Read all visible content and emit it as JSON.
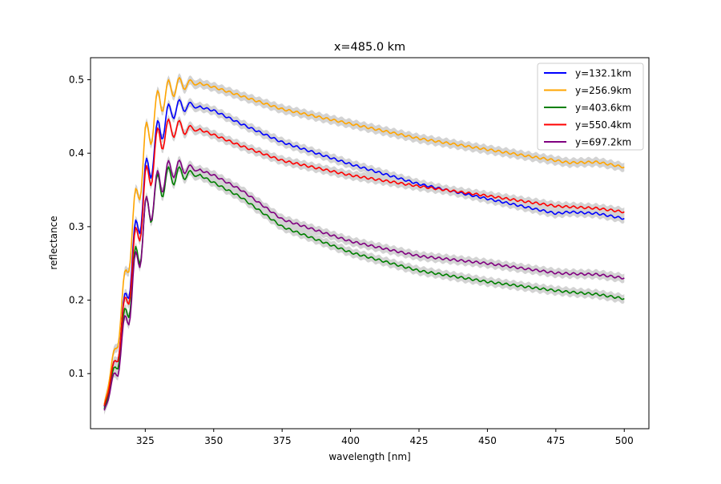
{
  "chart_data": {
    "type": "line",
    "title": "x=485.0 km",
    "xlabel": "wavelength [nm]",
    "ylabel": "reflectance",
    "xlim": [
      305,
      509
    ],
    "ylim": [
      0.025,
      0.53
    ],
    "xticks": [
      325,
      350,
      375,
      400,
      425,
      450,
      475,
      500
    ],
    "yticks": [
      0.1,
      0.2,
      0.3,
      0.4,
      0.5
    ],
    "xtick_labels": [
      "325",
      "350",
      "375",
      "400",
      "425",
      "450",
      "475",
      "500"
    ],
    "ytick_labels": [
      "0.1",
      "0.2",
      "0.3",
      "0.4",
      "0.5"
    ],
    "grid": false,
    "legend_position": "top-right",
    "uncertainty_band_color": "#d3d3d3",
    "x_points": [
      310,
      315,
      320,
      325,
      330,
      335,
      340,
      345,
      350,
      360,
      375,
      400,
      425,
      450,
      475,
      480,
      490,
      500
    ],
    "series": [
      {
        "name": "y=132.1km",
        "color": "#0000ff",
        "values": [
          0.055,
          0.13,
          0.25,
          0.36,
          0.43,
          0.46,
          0.465,
          0.463,
          0.458,
          0.44,
          0.415,
          0.385,
          0.358,
          0.338,
          0.318,
          0.32,
          0.318,
          0.311
        ]
      },
      {
        "name": "y=256.9km",
        "color": "#ffa500",
        "values": [
          0.058,
          0.15,
          0.29,
          0.41,
          0.47,
          0.49,
          0.495,
          0.495,
          0.49,
          0.478,
          0.46,
          0.44,
          0.42,
          0.405,
          0.39,
          0.387,
          0.388,
          0.381
        ]
      },
      {
        "name": "y=403.6km",
        "color": "#008000",
        "values": [
          0.052,
          0.12,
          0.22,
          0.31,
          0.355,
          0.37,
          0.372,
          0.37,
          0.36,
          0.34,
          0.3,
          0.265,
          0.24,
          0.225,
          0.213,
          0.211,
          0.208,
          0.202
        ]
      },
      {
        "name": "y=550.4km",
        "color": "#ff0000",
        "values": [
          0.056,
          0.13,
          0.24,
          0.35,
          0.42,
          0.435,
          0.433,
          0.432,
          0.425,
          0.41,
          0.39,
          0.37,
          0.355,
          0.342,
          0.328,
          0.327,
          0.325,
          0.32
        ]
      },
      {
        "name": "y=697.2km",
        "color": "#800080",
        "values": [
          0.05,
          0.11,
          0.21,
          0.31,
          0.36,
          0.38,
          0.38,
          0.377,
          0.37,
          0.35,
          0.31,
          0.28,
          0.26,
          0.25,
          0.237,
          0.236,
          0.235,
          0.23
        ]
      }
    ]
  }
}
